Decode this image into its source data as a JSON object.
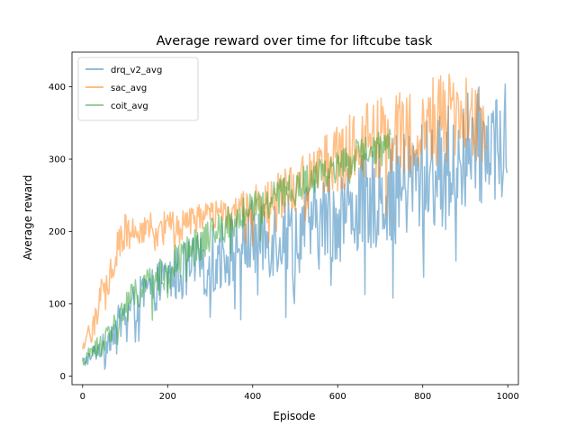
{
  "chart_data": {
    "type": "line",
    "title": "Average reward over time for liftcube task",
    "xlabel": "Episode",
    "ylabel": "Average reward",
    "xlim": [
      -25,
      1025
    ],
    "ylim": [
      -12,
      448
    ],
    "xticks": [
      0,
      200,
      400,
      600,
      800,
      1000
    ],
    "yticks": [
      0,
      100,
      200,
      300,
      400
    ],
    "xtick_labels": [
      "0",
      "200",
      "400",
      "600",
      "800",
      "1000"
    ],
    "ytick_labels": [
      "0",
      "100",
      "200",
      "300",
      "400"
    ],
    "grid": false,
    "legend_position": "upper left",
    "series": [
      {
        "name": "drq_v2_avg",
        "color": "#1f77b4",
        "alpha": 0.5,
        "x_range": [
          0,
          1000
        ],
        "anchors_x": [
          0,
          50,
          100,
          150,
          200,
          250,
          300,
          350,
          400,
          450,
          500,
          550,
          600,
          650,
          700,
          750,
          800,
          850,
          900,
          950,
          1000
        ],
        "mean": [
          18,
          45,
          85,
          115,
          135,
          148,
          160,
          175,
          190,
          195,
          200,
          210,
          225,
          235,
          250,
          260,
          275,
          290,
          310,
          320,
          330
        ],
        "spread": [
          8,
          25,
          35,
          40,
          45,
          55,
          60,
          65,
          70,
          75,
          75,
          80,
          85,
          85,
          90,
          95,
          100,
          105,
          105,
          105,
          95
        ]
      },
      {
        "name": "sac_avg",
        "color": "#ff7f0e",
        "alpha": 0.5,
        "x_range": [
          0,
          950
        ],
        "anchors_x": [
          0,
          50,
          100,
          150,
          200,
          250,
          300,
          350,
          400,
          450,
          500,
          550,
          600,
          650,
          700,
          750,
          800,
          850,
          900,
          950
        ],
        "mean": [
          30,
          120,
          200,
          205,
          210,
          215,
          220,
          225,
          235,
          245,
          260,
          280,
          300,
          320,
          330,
          340,
          345,
          355,
          370,
          340
        ],
        "spread": [
          15,
          45,
          35,
          25,
          25,
          25,
          25,
          30,
          35,
          40,
          45,
          55,
          60,
          65,
          70,
          75,
          80,
          80,
          70,
          90
        ]
      },
      {
        "name": "coit_avg",
        "color": "#2ca02c",
        "alpha": 0.5,
        "x_range": [
          0,
          725
        ],
        "anchors_x": [
          0,
          50,
          100,
          150,
          200,
          250,
          300,
          350,
          400,
          450,
          500,
          550,
          600,
          650,
          700,
          725
        ],
        "mean": [
          20,
          50,
          95,
          125,
          145,
          170,
          195,
          215,
          230,
          245,
          260,
          275,
          290,
          305,
          320,
          325
        ],
        "spread": [
          10,
          20,
          30,
          30,
          35,
          35,
          30,
          30,
          30,
          30,
          30,
          30,
          30,
          30,
          30,
          30
        ]
      }
    ]
  }
}
